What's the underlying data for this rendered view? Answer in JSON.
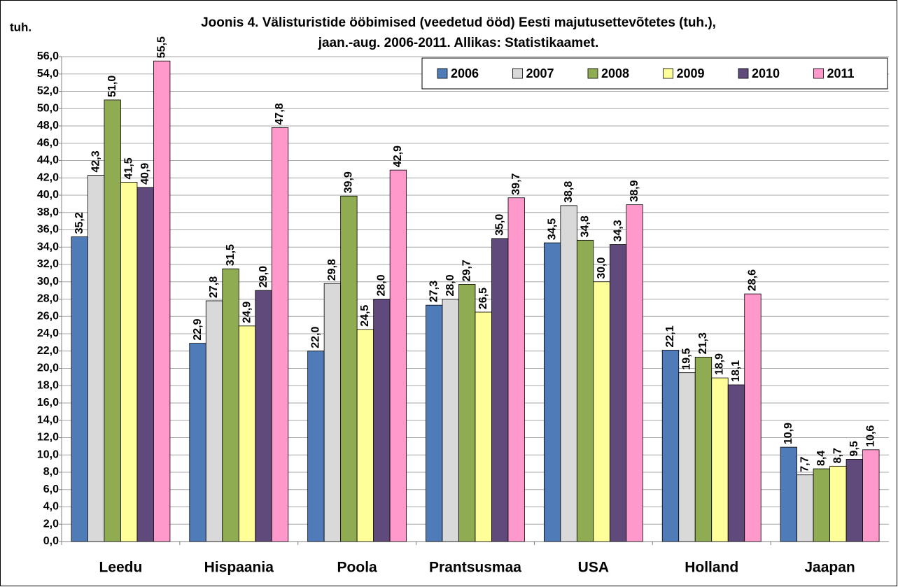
{
  "chart_data": {
    "type": "bar",
    "title": "Joonis 4. Välisturistide  ööbimised (veedetud ööd) Eesti majutusettevõtetes (tuh.),",
    "subtitle": "jaan.-aug.  2006-2011. Allikas: Statistikaamet.",
    "y_label": "tuh.",
    "categories": [
      "Leedu",
      "Hispaania",
      "Poola",
      "Prantsusmaa",
      "USA",
      "Holland",
      "Jaapan"
    ],
    "series": [
      {
        "name": "2006",
        "color": "#4f7cb8",
        "values": [
          35.2,
          22.9,
          22.0,
          27.3,
          34.5,
          22.1,
          10.9
        ],
        "value_labels": [
          "35,2",
          "22,9",
          "22,0",
          "27,3",
          "34,5",
          "22,1",
          "10,9"
        ]
      },
      {
        "name": "2007",
        "color": "#d9d9d9",
        "values": [
          42.3,
          27.8,
          29.8,
          28.0,
          38.8,
          19.5,
          7.7
        ],
        "value_labels": [
          "42,3",
          "27,8",
          "29,8",
          "28,0",
          "38,8",
          "19,5",
          "7,7"
        ]
      },
      {
        "name": "2008",
        "color": "#8fac52",
        "values": [
          51.0,
          31.5,
          39.9,
          29.7,
          34.8,
          21.3,
          8.4
        ],
        "value_labels": [
          "51,0",
          "31,5",
          "39,9",
          "29,7",
          "34,8",
          "21,3",
          "8,4"
        ]
      },
      {
        "name": "2009",
        "color": "#ffff99",
        "values": [
          41.5,
          24.9,
          24.5,
          26.5,
          30.0,
          18.9,
          8.7
        ],
        "value_labels": [
          "41,5",
          "24,9",
          "24,5",
          "26,5",
          "30,0",
          "18,9",
          "8,7"
        ]
      },
      {
        "name": "2010",
        "color": "#604a7b",
        "values": [
          40.9,
          29.0,
          28.0,
          35.0,
          34.3,
          18.1,
          9.5
        ],
        "value_labels": [
          "40,9",
          "29,0",
          "28,0",
          "35,0",
          "34,3",
          "18,1",
          "9,5"
        ]
      },
      {
        "name": "2011",
        "color": "#ff99cc",
        "values": [
          55.5,
          47.8,
          42.9,
          39.7,
          38.9,
          28.6,
          10.6
        ],
        "value_labels": [
          "55,5",
          "47,8",
          "42,9",
          "39,7",
          "38,9",
          "28,6",
          "10,6"
        ]
      }
    ],
    "ylim": [
      0,
      56
    ],
    "yticks": [
      {
        "value": 0,
        "label": "0,0"
      },
      {
        "value": 2,
        "label": "2,0"
      },
      {
        "value": 4,
        "label": "4,0"
      },
      {
        "value": 6,
        "label": "6,0"
      },
      {
        "value": 8,
        "label": "8,0"
      },
      {
        "value": 10,
        "label": "10,0"
      },
      {
        "value": 12,
        "label": "12,0"
      },
      {
        "value": 14,
        "label": "14,0"
      },
      {
        "value": 16,
        "label": "16,0"
      },
      {
        "value": 18,
        "label": "18,0"
      },
      {
        "value": 20,
        "label": "20,0"
      },
      {
        "value": 22,
        "label": "22,0"
      },
      {
        "value": 24,
        "label": "24,0"
      },
      {
        "value": 26,
        "label": "26,0"
      },
      {
        "value": 28,
        "label": "28,0"
      },
      {
        "value": 30,
        "label": "30,0"
      },
      {
        "value": 32,
        "label": "32,0"
      },
      {
        "value": 34,
        "label": "34,0"
      },
      {
        "value": 36,
        "label": "36,0"
      },
      {
        "value": 38,
        "label": "38,0"
      },
      {
        "value": 40,
        "label": "40,0"
      },
      {
        "value": 42,
        "label": "42,0"
      },
      {
        "value": 44,
        "label": "44,0"
      },
      {
        "value": 46,
        "label": "46,0"
      },
      {
        "value": 48,
        "label": "48,0"
      },
      {
        "value": 50,
        "label": "50,0"
      },
      {
        "value": 52,
        "label": "52,0"
      },
      {
        "value": 54,
        "label": "54,0"
      },
      {
        "value": 56,
        "label": "56,0"
      }
    ],
    "grid": true,
    "legend": "top-right"
  }
}
